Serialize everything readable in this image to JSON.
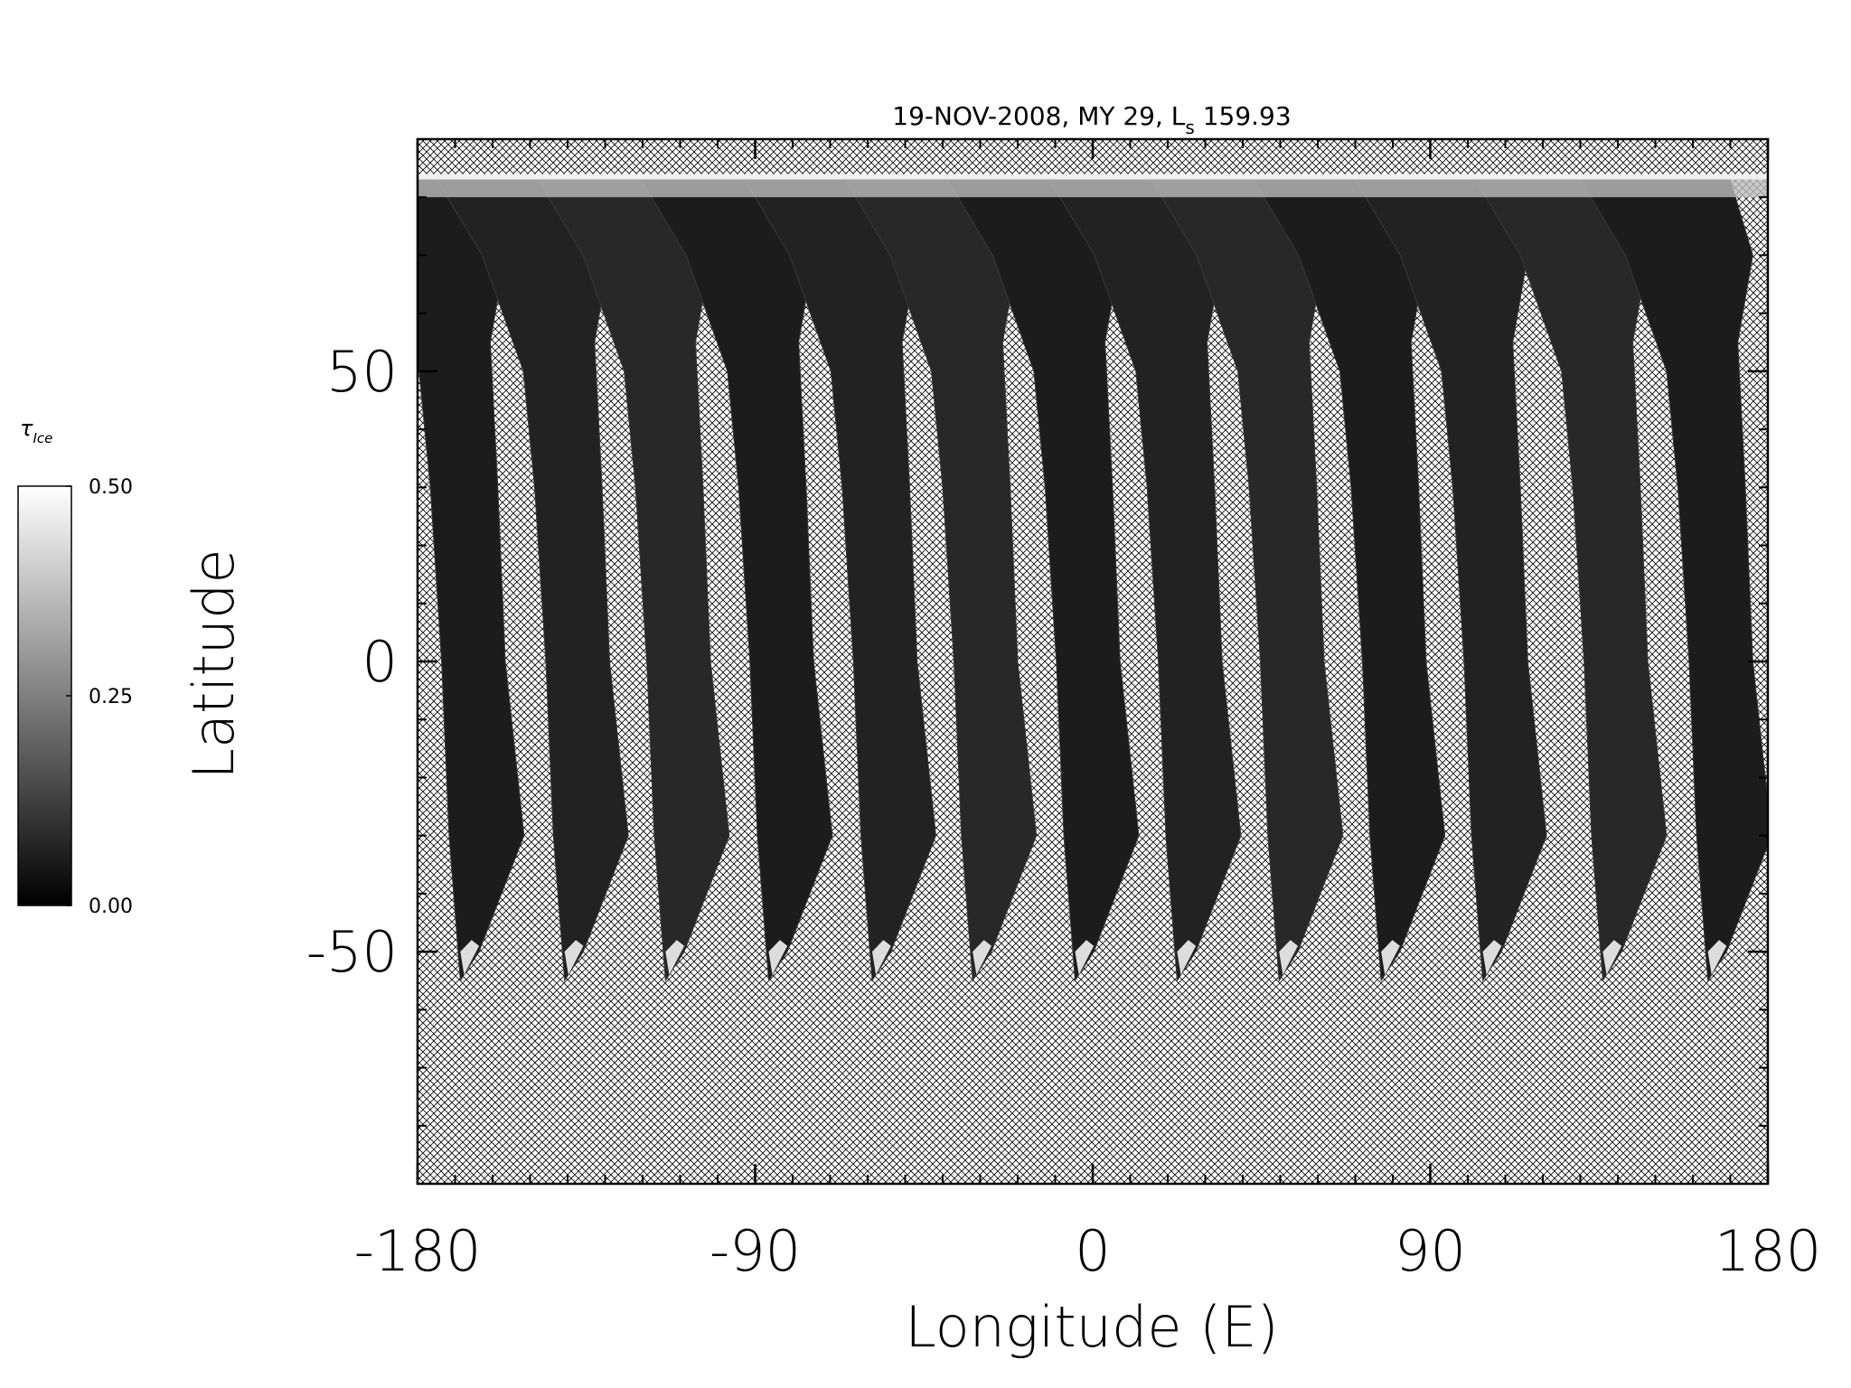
{
  "chart_data": {
    "type": "map",
    "title": {
      "main": "19-NOV-2008, MY 29,  L",
      "sub": "s",
      "rest": " 159.93"
    },
    "x_label": "Longitude (E)",
    "y_label": "Latitude",
    "xlim": [
      -180,
      180
    ],
    "xticks": [
      -180,
      -90,
      0,
      90,
      180
    ],
    "ylim": [
      -90,
      90
    ],
    "yticks": [
      -50,
      0,
      50
    ],
    "minor_tick_step": 10,
    "swath_south_lon": [
      -168.6,
      -140.8,
      -113.9,
      -86.4,
      -58.8,
      -32,
      -4.7,
      22.5,
      49.7,
      76.9,
      104,
      136,
      164
    ],
    "colorbar": {
      "label": "τ",
      "label_sub": "Ice",
      "lim": [
        0,
        0.5
      ],
      "ticks": [
        {
          "value": 0,
          "label": "0.00"
        },
        {
          "value": 0.25,
          "label": "0.25"
        },
        {
          "value": 0.5,
          "label": "0.50"
        }
      ],
      "colors": [
        "#000000",
        "#ffffff"
      ]
    }
  }
}
